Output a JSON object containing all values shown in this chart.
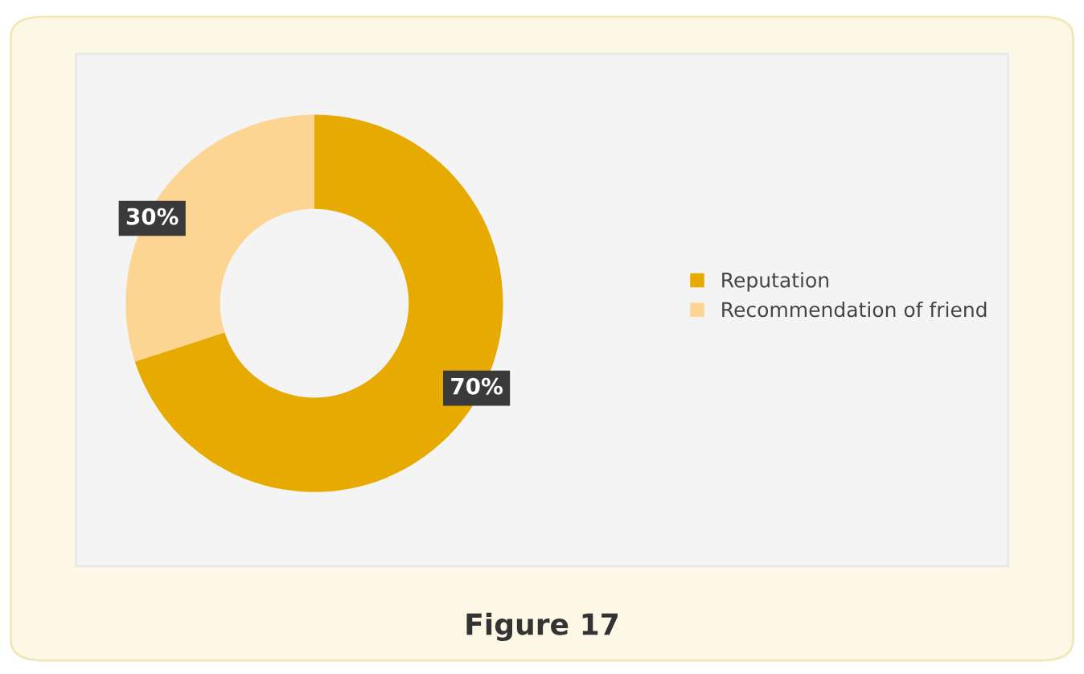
{
  "chart_data": {
    "type": "donut",
    "categories": [
      "Reputation",
      "Recommendation of friend"
    ],
    "values": [
      70,
      30
    ],
    "colors": [
      "#e6aa00",
      "#fdd592"
    ],
    "value_labels": [
      "70%",
      "30%"
    ],
    "legend": "right",
    "annotations": [
      "Figure 17"
    ]
  }
}
